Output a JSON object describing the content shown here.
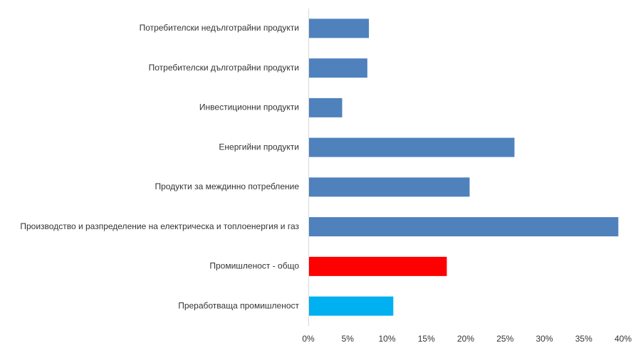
{
  "chart_data": {
    "type": "bar",
    "orientation": "horizontal",
    "title": "",
    "xlabel": "",
    "ylabel": "",
    "categories": [
      "Потребителски недълготрайни продукти",
      "Потребителски дълготрайни продукти",
      "Инвестиционни продукти",
      "Енергийни продукти",
      "Продукти за междинно потребление",
      "Производство и разпределение на електрическа и топлоенергия и газ",
      "Промишленост - общо",
      "Преработваща промишленост"
    ],
    "values": [
      7.7,
      7.5,
      4.3,
      26.2,
      20.5,
      39.4,
      17.6,
      10.8
    ],
    "colors": [
      "#4f81bd",
      "#4f81bd",
      "#4f81bd",
      "#4f81bd",
      "#4f81bd",
      "#4f81bd",
      "#ff0000",
      "#00b0f0"
    ],
    "xlim": [
      0,
      40
    ],
    "ticks": [
      0,
      5,
      10,
      15,
      20,
      25,
      30,
      35,
      40
    ],
    "tick_labels": [
      "0%",
      "5%",
      "10%",
      "15%",
      "20%",
      "25%",
      "30%",
      "35%",
      "40%"
    ],
    "grid": false,
    "legend": "none"
  }
}
